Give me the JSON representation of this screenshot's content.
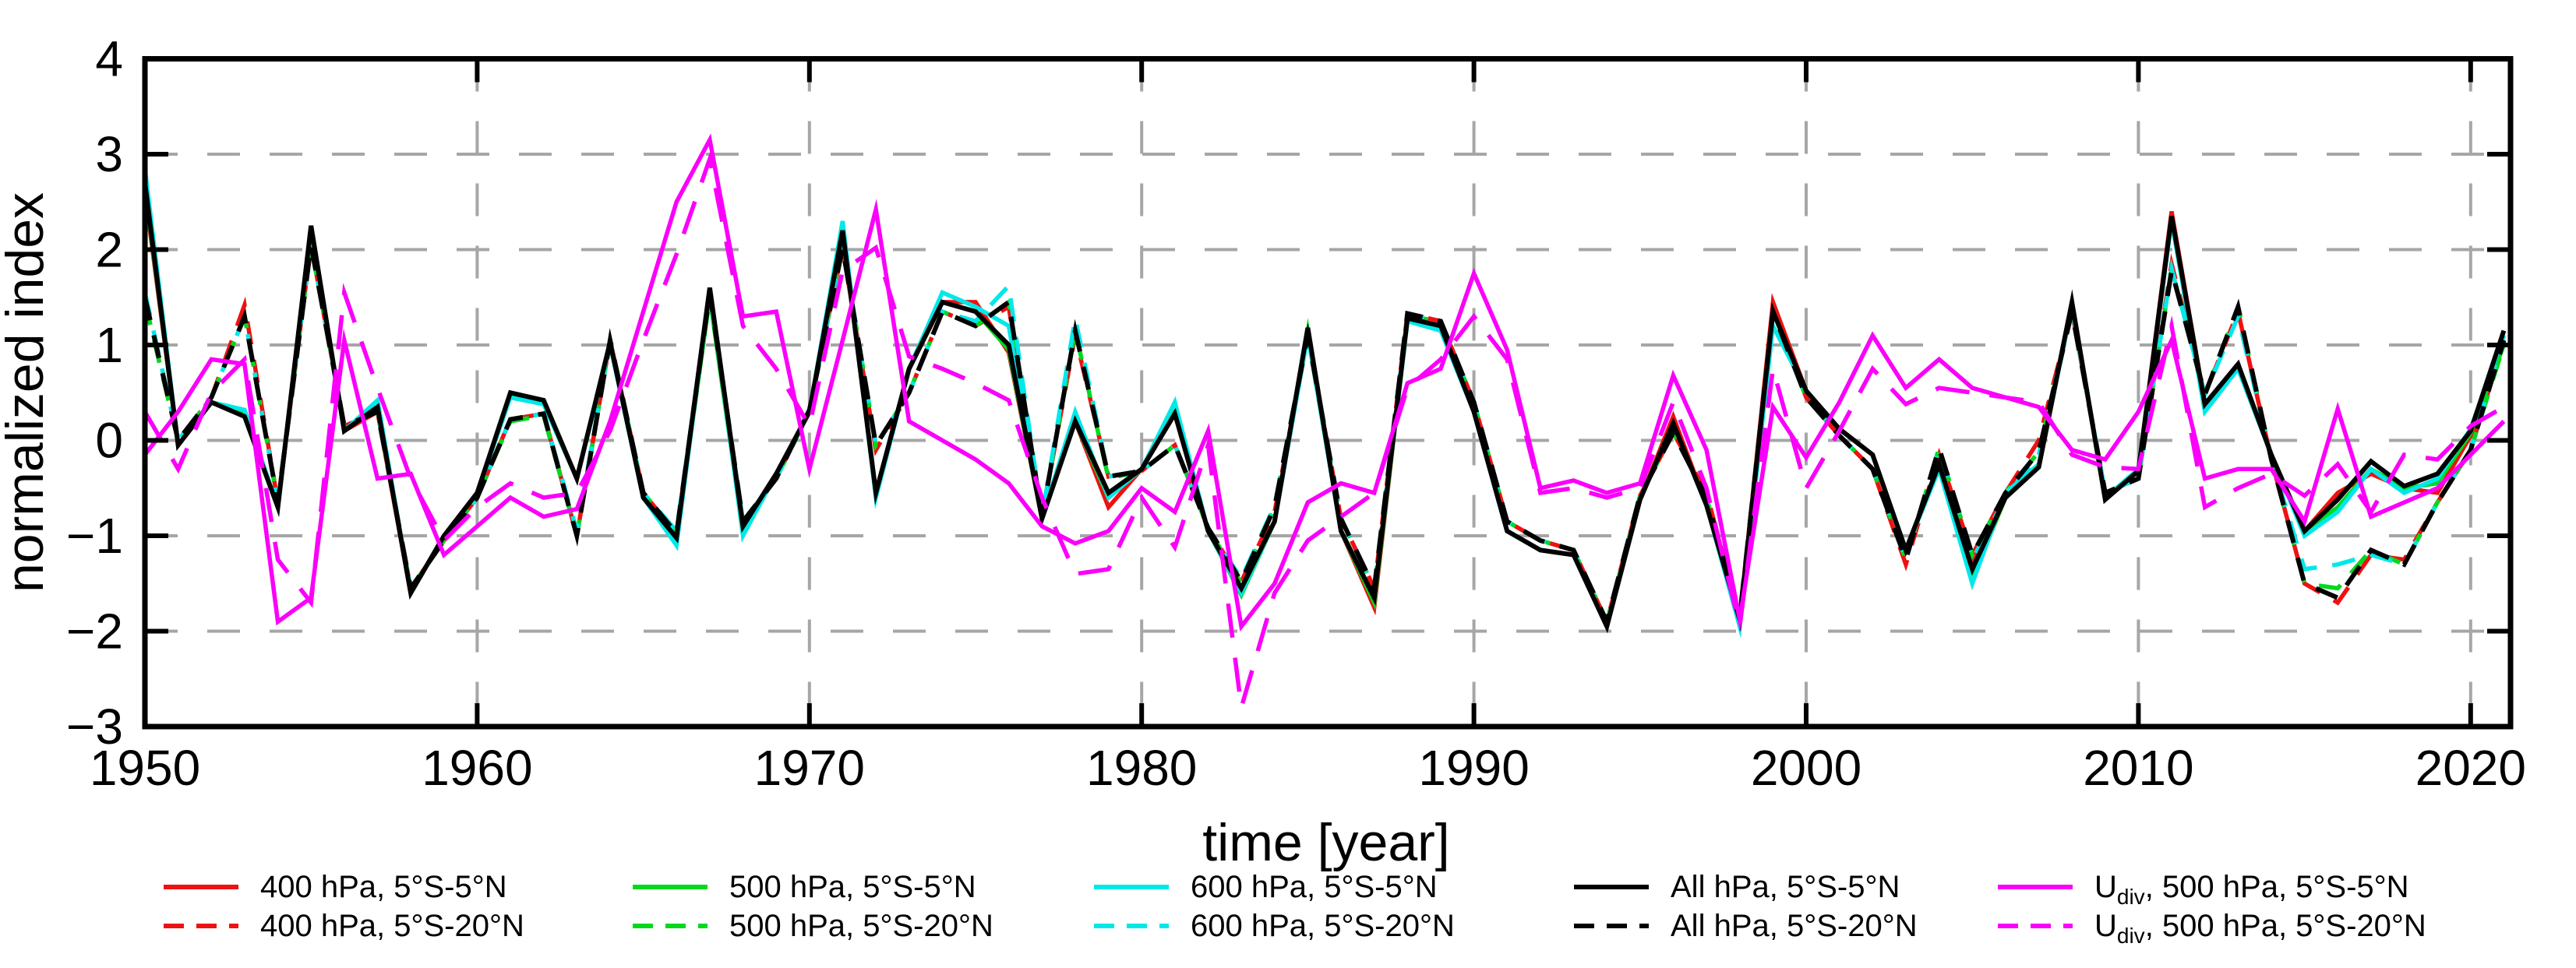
{
  "chart_data": {
    "type": "line",
    "title": "",
    "xlabel": "time [year]",
    "ylabel": "normalized index",
    "xlim": [
      1950,
      2021.2
    ],
    "ylim": [
      -3,
      4
    ],
    "x_ticks": [
      1950,
      1960,
      1970,
      1980,
      1990,
      2000,
      2010,
      2020
    ],
    "y_ticks": [
      -3,
      -2,
      -1,
      0,
      1,
      2,
      3,
      4
    ],
    "y_tick_labels": [
      "−3",
      "−2",
      "−1",
      "0",
      "1",
      "2",
      "3",
      "4"
    ],
    "grid": true,
    "grid_color": "#a6a6a6",
    "legend_position": "below-chart, 5 columns x 2 rows",
    "years": [
      1950,
      1951,
      1952,
      1953,
      1954,
      1955,
      1956,
      1957,
      1958,
      1959,
      1960,
      1961,
      1962,
      1963,
      1964,
      1965,
      1966,
      1967,
      1968,
      1969,
      1970,
      1971,
      1972,
      1973,
      1974,
      1975,
      1976,
      1977,
      1978,
      1979,
      1980,
      1981,
      1982,
      1983,
      1984,
      1985,
      1986,
      1987,
      1988,
      1989,
      1990,
      1991,
      1992,
      1993,
      1994,
      1995,
      1996,
      1997,
      1998,
      1999,
      2000,
      2001,
      2002,
      2003,
      2004,
      2005,
      2006,
      2007,
      2008,
      2009,
      2010,
      2011,
      2012,
      2013,
      2014,
      2015,
      2016,
      2017,
      2018,
      2019,
      2020,
      2021
    ],
    "series": [
      {
        "id": "s400-5n",
        "label": "400 hPa, 5°S-5°N",
        "color": "#ee1111",
        "style": "solid",
        "values": [
          2.6,
          -0.05,
          0.4,
          0.3,
          -0.7,
          2.2,
          0.1,
          0.3,
          -1.6,
          -1.0,
          -0.55,
          0.5,
          0.42,
          -0.4,
          1.03,
          -0.6,
          -1.02,
          1.6,
          -0.9,
          -0.35,
          0.3,
          2.2,
          -0.55,
          0.75,
          1.45,
          1.45,
          0.92,
          -0.82,
          0.2,
          -0.7,
          -0.3,
          0.28,
          -0.95,
          -1.55,
          -0.85,
          1.18,
          -0.95,
          -1.75,
          1.28,
          1.2,
          0.3,
          -0.95,
          -1.15,
          -1.2,
          -1.9,
          -0.62,
          0.25,
          -0.68,
          -1.88,
          1.45,
          0.52,
          0.12,
          -0.15,
          -1.15,
          -0.25,
          -1.3,
          -0.6,
          -0.28,
          1.45,
          -0.62,
          -0.32,
          2.4,
          0.38,
          0.8,
          -0.15,
          -0.95,
          -0.55,
          -0.35,
          -0.5,
          -0.55,
          0.05,
          1.1
        ]
      },
      {
        "id": "d400-20n",
        "label": "400 hPa, 5°S-20°N",
        "color": "#ee1111",
        "style": "dashed",
        "values": [
          1.45,
          0.0,
          0.45,
          1.42,
          -0.65,
          2.05,
          0.15,
          0.3,
          -1.55,
          -1.05,
          -0.6,
          0.22,
          0.28,
          -1.0,
          1.05,
          -0.55,
          -0.98,
          1.55,
          -0.85,
          -0.4,
          0.32,
          2.02,
          -0.1,
          0.5,
          1.35,
          1.2,
          1.4,
          -0.8,
          1.1,
          -0.38,
          -0.32,
          -0.05,
          -0.92,
          -1.48,
          -0.75,
          1.1,
          -0.82,
          -1.55,
          1.33,
          1.25,
          0.4,
          -0.85,
          -1.05,
          -1.15,
          -1.9,
          -0.58,
          0.08,
          -0.55,
          -1.85,
          1.4,
          0.45,
          0.05,
          -0.3,
          -1.3,
          -0.15,
          -1.2,
          -0.55,
          0.0,
          1.35,
          -0.55,
          -0.4,
          1.85,
          0.48,
          1.35,
          -0.2,
          -1.5,
          -1.7,
          -1.2,
          -1.25,
          -0.65,
          -0.1,
          1.05
        ]
      },
      {
        "id": "s500-5n",
        "label": "500 hPa, 5°S-5°N",
        "color": "#00d91e",
        "style": "solid",
        "values": [
          2.65,
          -0.05,
          0.4,
          0.3,
          -0.7,
          2.25,
          0.1,
          0.35,
          -1.6,
          -1.0,
          -0.55,
          0.48,
          0.4,
          -0.4,
          1.03,
          -0.6,
          -1.02,
          1.5,
          -0.95,
          -0.35,
          0.3,
          2.25,
          -0.55,
          0.75,
          1.45,
          1.35,
          0.95,
          -0.82,
          0.2,
          -0.6,
          -0.3,
          0.3,
          -0.95,
          -1.62,
          -0.85,
          1.15,
          -0.95,
          -1.7,
          1.25,
          1.2,
          0.3,
          -0.95,
          -1.15,
          -1.2,
          -1.95,
          -0.62,
          0.18,
          -0.68,
          -1.9,
          1.35,
          0.52,
          0.12,
          -0.15,
          -1.15,
          -0.25,
          -1.45,
          -0.6,
          -0.28,
          1.43,
          -0.62,
          -0.32,
          2.35,
          0.38,
          0.8,
          -0.15,
          -0.95,
          -0.7,
          -0.3,
          -0.5,
          -0.45,
          0.08,
          1.0
        ]
      },
      {
        "id": "d500-20n",
        "label": "500 hPa, 5°S-20°N",
        "color": "#00d91e",
        "style": "dashed",
        "values": [
          1.45,
          0.0,
          0.45,
          1.3,
          -0.65,
          2.05,
          0.15,
          0.3,
          -1.55,
          -1.05,
          -0.6,
          0.2,
          0.26,
          -1.0,
          1.05,
          -0.55,
          -0.98,
          1.52,
          -0.85,
          -0.4,
          0.3,
          2.05,
          -0.05,
          0.5,
          1.35,
          1.2,
          1.45,
          -0.8,
          1.15,
          -0.4,
          -0.32,
          -0.05,
          -0.92,
          -1.5,
          -0.7,
          1.1,
          -0.82,
          -1.55,
          1.3,
          1.25,
          0.4,
          -0.85,
          -1.05,
          -1.15,
          -1.9,
          -0.58,
          0.08,
          -0.6,
          -1.85,
          1.35,
          0.45,
          0.05,
          -0.3,
          -1.25,
          -0.08,
          -1.2,
          -0.55,
          -0.12,
          1.35,
          -0.55,
          -0.4,
          1.8,
          0.48,
          1.4,
          -0.2,
          -1.5,
          -1.55,
          -1.15,
          -1.3,
          -0.65,
          -0.1,
          1.0
        ]
      },
      {
        "id": "s600-5n",
        "label": "600 hPa, 5°S-5°N",
        "color": "#00e8e8",
        "style": "solid",
        "values": [
          2.85,
          -0.05,
          0.4,
          0.32,
          -0.7,
          2.25,
          0.1,
          0.42,
          -1.6,
          -1.0,
          -0.55,
          0.45,
          0.38,
          -0.4,
          1.0,
          -0.6,
          -1.1,
          1.6,
          -1.0,
          -0.35,
          0.3,
          2.3,
          -0.6,
          0.75,
          1.55,
          1.4,
          1.2,
          -0.82,
          0.3,
          -0.6,
          -0.3,
          0.4,
          -0.95,
          -1.6,
          -0.85,
          1.1,
          -0.95,
          -1.65,
          1.25,
          1.15,
          0.3,
          -0.95,
          -1.15,
          -1.2,
          -1.95,
          -0.62,
          0.18,
          -0.68,
          -1.95,
          1.2,
          0.52,
          0.12,
          -0.15,
          -1.15,
          -0.3,
          -1.5,
          -0.55,
          -0.25,
          1.4,
          -0.6,
          -0.3,
          2.3,
          0.3,
          0.75,
          -0.15,
          -1.0,
          -0.75,
          -0.3,
          -0.55,
          -0.4,
          0.12,
          1.1
        ]
      },
      {
        "id": "d600-20n",
        "label": "600 hPa, 5°S-20°N",
        "color": "#00e8e8",
        "style": "dashed",
        "values": [
          1.55,
          0.0,
          0.45,
          1.3,
          -0.65,
          2.05,
          0.15,
          0.3,
          -1.55,
          -1.05,
          -0.6,
          0.22,
          0.28,
          -0.95,
          1.05,
          -0.55,
          -0.95,
          1.55,
          -0.85,
          -0.4,
          0.32,
          2.05,
          -0.05,
          0.5,
          1.35,
          1.25,
          1.62,
          -0.8,
          1.28,
          -0.38,
          -0.32,
          -0.05,
          -0.92,
          -1.45,
          -0.68,
          1.1,
          -0.82,
          -1.55,
          1.33,
          1.25,
          0.4,
          -0.85,
          -1.05,
          -1.15,
          -1.9,
          -0.58,
          0.08,
          -0.6,
          -1.85,
          1.35,
          0.45,
          0.05,
          -0.3,
          -1.25,
          -0.08,
          -1.25,
          -0.6,
          -0.15,
          1.38,
          -0.55,
          -0.4,
          1.8,
          0.48,
          1.3,
          -0.2,
          -1.35,
          -1.3,
          -1.2,
          -1.3,
          -0.65,
          -0.1,
          1.1
        ]
      },
      {
        "id": "sall-5n",
        "label": "All hPa, 5°S-5°N",
        "color": "#000000",
        "style": "solid",
        "values": [
          2.7,
          -0.05,
          0.4,
          0.25,
          -0.7,
          2.25,
          0.1,
          0.35,
          -1.6,
          -1.0,
          -0.55,
          0.5,
          0.42,
          -0.4,
          1.03,
          -0.6,
          -1.02,
          1.6,
          -0.9,
          -0.35,
          0.3,
          2.2,
          -0.55,
          0.75,
          1.45,
          1.35,
          1.0,
          -0.82,
          0.2,
          -0.55,
          -0.3,
          0.28,
          -0.95,
          -1.55,
          -0.85,
          1.18,
          -0.95,
          -1.65,
          1.28,
          1.2,
          0.3,
          -0.95,
          -1.15,
          -1.2,
          -1.95,
          -0.62,
          0.18,
          -0.68,
          -1.88,
          1.35,
          0.52,
          0.12,
          -0.15,
          -1.15,
          -0.25,
          -1.35,
          -0.6,
          -0.28,
          1.45,
          -0.62,
          -0.32,
          2.35,
          0.38,
          0.8,
          -0.15,
          -0.95,
          -0.62,
          -0.22,
          -0.48,
          -0.35,
          0.1,
          1.15
        ]
      },
      {
        "id": "dall-20n",
        "label": "All hPa, 5°S-20°N",
        "color": "#000000",
        "style": "dashed",
        "values": [
          1.5,
          0.0,
          0.45,
          1.3,
          -0.65,
          2.05,
          0.15,
          0.3,
          -1.55,
          -1.05,
          -0.6,
          0.22,
          0.28,
          -1.0,
          1.05,
          -0.55,
          -0.98,
          1.55,
          -0.85,
          -0.4,
          0.32,
          2.02,
          -0.05,
          0.5,
          1.35,
          1.2,
          1.45,
          -0.8,
          1.15,
          -0.38,
          -0.32,
          -0.05,
          -0.92,
          -1.48,
          -0.7,
          1.1,
          -0.82,
          -1.55,
          1.33,
          1.25,
          0.4,
          -0.85,
          -1.05,
          -1.15,
          -1.9,
          -0.58,
          0.08,
          -0.6,
          -1.85,
          1.35,
          0.45,
          0.05,
          -0.3,
          -1.25,
          -0.08,
          -1.2,
          -0.55,
          -0.12,
          1.35,
          -0.55,
          -0.4,
          1.78,
          0.48,
          1.4,
          -0.2,
          -1.5,
          -1.65,
          -1.15,
          -1.3,
          -0.65,
          -0.1,
          1.05
        ]
      },
      {
        "id": "sudiv-5n",
        "label": "U_div, 500 hPa, 5°S-5°N",
        "color": "#fa00fa",
        "style": "solid",
        "values": [
          -0.15,
          0.3,
          0.85,
          0.8,
          -1.9,
          -1.65,
          1.05,
          -0.4,
          -0.35,
          -1.2,
          -0.9,
          -0.6,
          -0.8,
          -0.72,
          0.2,
          1.35,
          2.5,
          3.15,
          1.3,
          1.35,
          -0.3,
          1.05,
          2.42,
          0.2,
          0.0,
          -0.2,
          -0.45,
          -0.9,
          -1.08,
          -0.95,
          -0.5,
          -0.75,
          0.1,
          -1.95,
          -1.5,
          -0.65,
          -0.45,
          -0.55,
          0.6,
          0.75,
          1.75,
          0.95,
          -0.5,
          -0.42,
          -0.55,
          -0.45,
          0.68,
          -0.1,
          -1.88,
          0.35,
          -0.18,
          0.4,
          1.1,
          0.55,
          0.85,
          0.55,
          0.45,
          0.35,
          -0.1,
          -0.2,
          0.3,
          1.05,
          -0.4,
          -0.3,
          -0.3,
          -0.85,
          0.33,
          -0.8,
          -0.65,
          -0.5,
          -0.15,
          0.2
        ]
      },
      {
        "id": "dudiv-20n",
        "label": "U_div, 500 hPa, 5°S-20°N",
        "color": "#fa00fa",
        "style": "dashed",
        "values": [
          0.3,
          -0.3,
          0.5,
          0.85,
          -1.25,
          -1.7,
          1.55,
          0.55,
          -0.4,
          -1.05,
          -0.7,
          -0.45,
          -0.6,
          -0.55,
          0.1,
          1.05,
          1.95,
          2.95,
          1.2,
          0.75,
          0.15,
          1.78,
          2.02,
          0.88,
          0.75,
          0.6,
          0.42,
          -0.6,
          -1.4,
          -1.35,
          -0.6,
          -1.12,
          -0.05,
          -2.8,
          -1.6,
          -1.05,
          -0.8,
          -0.55,
          0.55,
          0.85,
          1.3,
          0.85,
          -0.55,
          -0.5,
          -0.6,
          -0.5,
          0.4,
          -0.5,
          -1.95,
          0.75,
          -0.5,
          0.1,
          0.75,
          0.38,
          0.55,
          0.5,
          0.45,
          0.4,
          -0.15,
          -0.28,
          -0.3,
          1.2,
          -0.7,
          -0.5,
          -0.35,
          -0.58,
          -0.25,
          -0.75,
          -0.15,
          -0.2,
          0.15,
          0.35
        ]
      }
    ],
    "legend_columns": [
      [
        0,
        1
      ],
      [
        2,
        3
      ],
      [
        4,
        5
      ],
      [
        6,
        7
      ],
      [
        8,
        9
      ]
    ]
  }
}
